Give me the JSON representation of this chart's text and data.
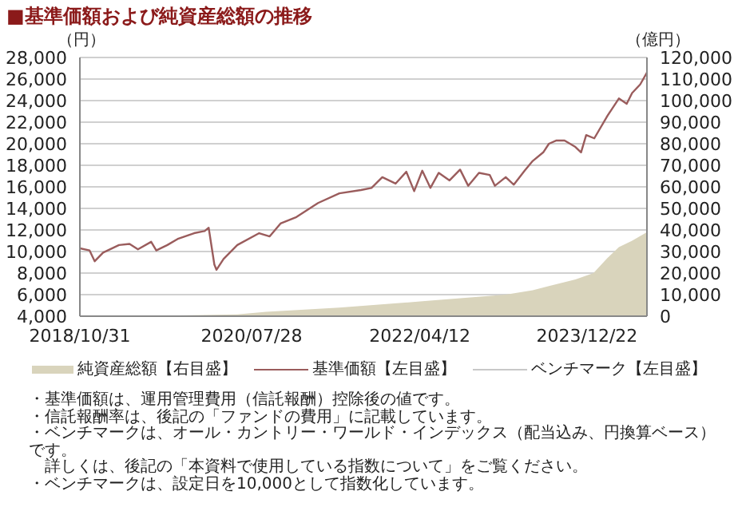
{
  "chart_data": {
    "type": "line",
    "title": "■基準価額および純資産総額の推移",
    "ylabel": "（円）",
    "y2label": "（億円）",
    "xlim": [
      "2018-10-31",
      "2024-07-31"
    ],
    "xticks": [
      {
        "value": "2018-10-31",
        "label": "2018/10/31"
      },
      {
        "value": "2020-07-28",
        "label": "2020/07/28"
      },
      {
        "value": "2022-04-12",
        "label": "2022/04/12"
      },
      {
        "value": "2023-12-22",
        "label": "2023/12/22"
      }
    ],
    "ylim": [
      4000,
      28000
    ],
    "yticks": [
      {
        "value": 4000,
        "label": "4,000"
      },
      {
        "value": 6000,
        "label": "6,000"
      },
      {
        "value": 8000,
        "label": "8,000"
      },
      {
        "value": 10000,
        "label": "10,000"
      },
      {
        "value": 12000,
        "label": "12,000"
      },
      {
        "value": 14000,
        "label": "14,000"
      },
      {
        "value": 16000,
        "label": "16,000"
      },
      {
        "value": 18000,
        "label": "18,000"
      },
      {
        "value": 20000,
        "label": "20,000"
      },
      {
        "value": 22000,
        "label": "22,000"
      },
      {
        "value": 24000,
        "label": "24,000"
      },
      {
        "value": 26000,
        "label": "26,000"
      },
      {
        "value": 28000,
        "label": "28,000"
      }
    ],
    "y2lim": [
      0,
      120000
    ],
    "y2ticks": [
      0,
      {
        "value": 10000,
        "label": "10,000"
      },
      {
        "value": 20000,
        "label": "20,000"
      },
      {
        "value": 30000,
        "label": "30,000"
      },
      {
        "value": 40000,
        "label": "40,000"
      },
      {
        "value": 50000,
        "label": "50,000"
      },
      {
        "value": 60000,
        "label": "60,000"
      },
      {
        "value": 70000,
        "label": "70,000"
      },
      {
        "value": 80000,
        "label": "80,000"
      },
      {
        "value": 90000,
        "label": "90,000"
      },
      {
        "value": 100000,
        "label": "100,000"
      },
      {
        "value": 110000,
        "label": "110,000"
      },
      {
        "value": 120000,
        "label": "120,000"
      }
    ],
    "grid": "y",
    "legend": "bottom",
    "tick_labels": [
      "x",
      "y",
      "y2"
    ],
    "series": [
      {
        "name": "純資産総額【右目盛】",
        "type": "area",
        "axis": "y2",
        "color": "#d9d4bc",
        "x": [
          "2018-10-31",
          "2019-08-10",
          "2020-06-05",
          "2020-09-20",
          "2021-06-18",
          "2022-05-01",
          "2023-02-24",
          "2023-06-04",
          "2023-08-03",
          "2023-11-09",
          "2024-01-15",
          "2024-03-07",
          "2024-04-18",
          "2024-06-06",
          "2024-07-31"
        ],
        "values": [
          0,
          200,
          800,
          2000,
          4000,
          7000,
          10000,
          12000,
          14000,
          17000,
          20000,
          27000,
          32000,
          35000,
          39000
        ]
      },
      {
        "name": "基準価額【左目盛】",
        "axis": "y",
        "color": "#9a5c5c",
        "x": [
          "2018-10-31",
          "2018-12-06",
          "2018-12-25",
          "2019-01-25",
          "2019-03-25",
          "2019-05-03",
          "2019-06-03",
          "2019-07-22",
          "2019-08-10",
          "2019-09-20",
          "2019-10-31",
          "2019-12-28",
          "2020-02-05",
          "2020-02-20",
          "2020-03-12",
          "2020-03-20",
          "2020-04-15",
          "2020-06-05",
          "2020-08-25",
          "2020-10-03",
          "2020-11-12",
          "2021-01-10",
          "2021-03-31",
          "2021-06-18",
          "2021-09-06",
          "2021-10-15",
          "2021-11-24",
          "2022-01-12",
          "2022-02-21",
          "2022-03-22",
          "2022-04-21",
          "2022-05-21",
          "2022-06-21",
          "2022-07-31",
          "2022-09-08",
          "2022-10-08",
          "2022-11-17",
          "2022-12-27",
          "2023-01-15",
          "2023-02-24",
          "2023-03-26",
          "2023-05-05",
          "2023-06-04",
          "2023-07-13",
          "2023-08-03",
          "2023-08-31",
          "2023-09-30",
          "2023-11-09",
          "2023-11-30",
          "2023-12-19",
          "2024-01-18",
          "2024-03-07",
          "2024-04-18",
          "2024-05-17",
          "2024-06-06",
          "2024-07-06",
          "2024-07-31"
        ],
        "values": [
          10300,
          10100,
          9100,
          9900,
          10600,
          10700,
          10200,
          10900,
          10100,
          10600,
          11200,
          11700,
          11900,
          12200,
          8800,
          8300,
          9300,
          10600,
          11700,
          11400,
          12600,
          13200,
          14500,
          15400,
          15700,
          15900,
          16900,
          16300,
          17400,
          15600,
          17500,
          15900,
          17300,
          16600,
          17600,
          16100,
          17300,
          17100,
          16100,
          16900,
          16200,
          17500,
          18400,
          19200,
          20000,
          20300,
          20300,
          19700,
          19200,
          20800,
          20500,
          22600,
          24200,
          23700,
          24700,
          25500,
          26600
        ]
      },
      {
        "name": "ベンチマーク【左目盛】",
        "axis": "y",
        "color": "#c8c8c8"
      }
    ],
    "annotations": [
      "・基準価額は、運用管理費用（信託報酬）控除後の値です。",
      "・信託報酬率は、後記の「ファンドの費用」に記載しています。",
      "・ベンチマークは、オール・カントリー・ワールド・インデックス（配当込み、円換算ベース）です。",
      "　詳しくは、後記の「本資料で使用している指数について」をご覧ください。",
      "・ベンチマークは、設定日を10,000として指数化しています。"
    ]
  }
}
